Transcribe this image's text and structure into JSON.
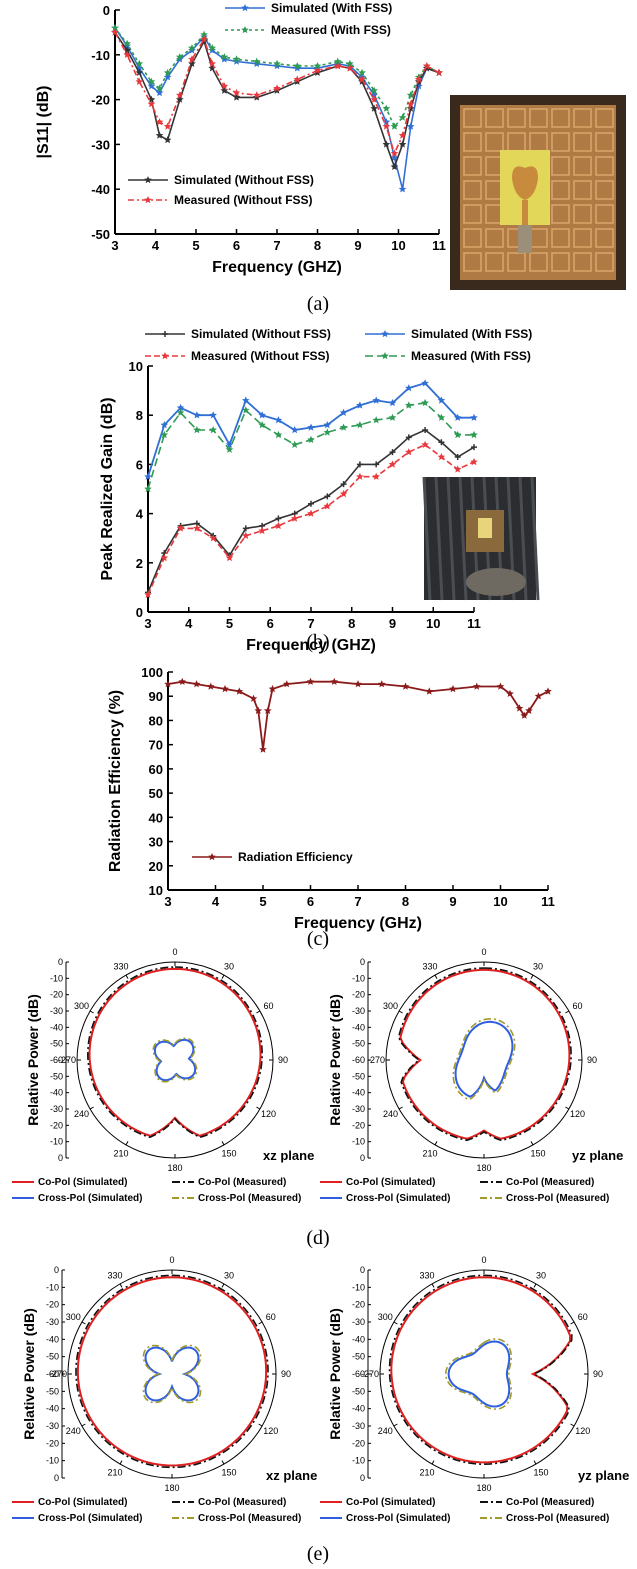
{
  "captions": {
    "a": "(a)",
    "b": "(b)",
    "c": "(c)",
    "d": "(d)",
    "e": "(e)"
  },
  "colors": {
    "black": "#333333",
    "red": "#e8383d",
    "blue": "#2f6fd6",
    "green": "#2e9a54",
    "maroon": "#8b1a1a",
    "polar_red": "#e02020",
    "polar_blue": "#2f5fe0",
    "polar_olive": "#a09a2a"
  },
  "photos": {
    "a": "photo-fss-antenna-prototype",
    "b": "photo-anechoic-chamber-measurement"
  },
  "chart_data": [
    {
      "id": "a",
      "type": "line",
      "xlabel": "Frequency (GHZ)",
      "ylabel": "|S11| (dB)",
      "xlim": [
        3,
        11
      ],
      "ylim": [
        -50,
        0
      ],
      "xticks": [
        "3",
        "4",
        "5",
        "6",
        "7",
        "8",
        "9",
        "10",
        "11"
      ],
      "yticks": [
        "0",
        "-10",
        "-20",
        "-30",
        "-40",
        "-50"
      ],
      "series": [
        {
          "name": "Simulated (With FSS)",
          "color": "blue",
          "x": [
            3,
            3.3,
            3.6,
            3.9,
            4.1,
            4.3,
            4.6,
            4.9,
            5.2,
            5.4,
            5.7,
            6.0,
            6.5,
            7.0,
            7.5,
            8.0,
            8.5,
            8.8,
            9.1,
            9.4,
            9.7,
            9.9,
            10.1,
            10.3,
            10.5,
            10.7,
            11.0
          ],
          "y": [
            -4,
            -8,
            -13,
            -17,
            -18.5,
            -15,
            -11,
            -9,
            -6,
            -9,
            -11,
            -11.5,
            -12,
            -12.5,
            -13,
            -13,
            -12,
            -12.5,
            -15,
            -19,
            -25,
            -33,
            -40,
            -26,
            -17,
            -13,
            -14
          ]
        },
        {
          "name": "Measured (With FSS)",
          "color": "green",
          "x": [
            3,
            3.3,
            3.6,
            3.9,
            4.1,
            4.3,
            4.6,
            4.9,
            5.2,
            5.4,
            5.7,
            6.0,
            6.5,
            7.0,
            7.5,
            8.0,
            8.5,
            8.8,
            9.1,
            9.4,
            9.7,
            9.9,
            10.1,
            10.3,
            10.5,
            10.7,
            11.0
          ],
          "y": [
            -4,
            -7.5,
            -12,
            -16,
            -17.5,
            -14,
            -10.5,
            -8.5,
            -5.5,
            -8.5,
            -10.5,
            -11,
            -11.5,
            -12,
            -12.5,
            -12.5,
            -11.5,
            -12,
            -14,
            -18,
            -22,
            -26,
            -24,
            -19,
            -15,
            -12.5,
            -14
          ]
        },
        {
          "name": "Simulated (Without FSS)",
          "color": "black",
          "x": [
            3,
            3.3,
            3.6,
            3.9,
            4.1,
            4.3,
            4.6,
            4.9,
            5.2,
            5.4,
            5.7,
            6.0,
            6.5,
            7.0,
            7.5,
            8.0,
            8.5,
            8.8,
            9.1,
            9.4,
            9.7,
            9.9,
            10.1,
            10.3,
            10.5,
            10.7,
            11.0
          ],
          "y": [
            -5,
            -9,
            -14,
            -20,
            -28,
            -29,
            -20,
            -12,
            -7,
            -13,
            -18,
            -19.5,
            -19.5,
            -18,
            -16,
            -14,
            -12.5,
            -13,
            -16,
            -22,
            -30,
            -35,
            -30,
            -22,
            -16,
            -13,
            -14
          ]
        },
        {
          "name": "Measured (Without FSS)",
          "color": "red",
          "x": [
            3,
            3.3,
            3.6,
            3.9,
            4.1,
            4.3,
            4.6,
            4.9,
            5.2,
            5.4,
            5.7,
            6.0,
            6.5,
            7.0,
            7.5,
            8.0,
            8.5,
            8.8,
            9.1,
            9.4,
            9.7,
            9.9,
            10.1,
            10.3,
            10.5,
            10.7,
            11.0
          ],
          "y": [
            -5,
            -10,
            -16,
            -21,
            -25,
            -26,
            -19,
            -11,
            -6.5,
            -12,
            -17,
            -18.5,
            -19,
            -17.5,
            -15.5,
            -13.5,
            -12.5,
            -13,
            -15.5,
            -20,
            -26,
            -32,
            -28,
            -21,
            -15.5,
            -12.5,
            -14
          ]
        }
      ]
    },
    {
      "id": "b",
      "type": "line",
      "xlabel": "Frequency (GHZ)",
      "ylabel": "Peak Realized Gain (dB)",
      "xlim": [
        3,
        11
      ],
      "ylim": [
        0,
        10
      ],
      "xticks": [
        "3",
        "4",
        "5",
        "6",
        "7",
        "8",
        "9",
        "10",
        "11"
      ],
      "yticks": [
        "0",
        "2",
        "4",
        "6",
        "8",
        "10"
      ],
      "series": [
        {
          "name": "Simulated (Without FSS)",
          "color": "black",
          "x": [
            3,
            3.4,
            3.8,
            4.2,
            4.6,
            5.0,
            5.4,
            5.8,
            6.2,
            6.6,
            7.0,
            7.4,
            7.8,
            8.2,
            8.6,
            9.0,
            9.4,
            9.8,
            10.2,
            10.6,
            11.0
          ],
          "y": [
            0.8,
            2.4,
            3.5,
            3.6,
            3.1,
            2.3,
            3.4,
            3.5,
            3.8,
            4.0,
            4.4,
            4.7,
            5.2,
            6.0,
            6.0,
            6.5,
            7.1,
            7.4,
            6.9,
            6.3,
            6.7
          ]
        },
        {
          "name": "Measured (Without FSS)",
          "color": "red",
          "x": [
            3,
            3.4,
            3.8,
            4.2,
            4.6,
            5.0,
            5.4,
            5.8,
            6.2,
            6.6,
            7.0,
            7.4,
            7.8,
            8.2,
            8.6,
            9.0,
            9.4,
            9.8,
            10.2,
            10.6,
            11.0
          ],
          "y": [
            0.7,
            2.2,
            3.4,
            3.4,
            3.0,
            2.2,
            3.1,
            3.3,
            3.5,
            3.8,
            4.0,
            4.3,
            4.8,
            5.5,
            5.5,
            6.0,
            6.5,
            6.8,
            6.3,
            5.8,
            6.1
          ]
        },
        {
          "name": "Simulated (With FSS)",
          "color": "blue",
          "x": [
            3,
            3.4,
            3.8,
            4.2,
            4.6,
            5.0,
            5.4,
            5.8,
            6.2,
            6.6,
            7.0,
            7.4,
            7.8,
            8.2,
            8.6,
            9.0,
            9.4,
            9.8,
            10.2,
            10.6,
            11.0
          ],
          "y": [
            5.5,
            7.6,
            8.3,
            8.0,
            8.0,
            6.8,
            8.6,
            8.0,
            7.8,
            7.4,
            7.5,
            7.6,
            8.1,
            8.4,
            8.6,
            8.5,
            9.1,
            9.3,
            8.6,
            7.9,
            7.9
          ]
        },
        {
          "name": "Measured (With FSS)",
          "color": "green",
          "x": [
            3,
            3.4,
            3.8,
            4.2,
            4.6,
            5.0,
            5.4,
            5.8,
            6.2,
            6.6,
            7.0,
            7.4,
            7.8,
            8.2,
            8.6,
            9.0,
            9.4,
            9.8,
            10.2,
            10.6,
            11.0
          ],
          "y": [
            5.0,
            7.2,
            8.1,
            7.4,
            7.4,
            6.6,
            8.2,
            7.6,
            7.2,
            6.8,
            7.0,
            7.3,
            7.5,
            7.6,
            7.8,
            7.9,
            8.4,
            8.5,
            7.9,
            7.2,
            7.2
          ]
        }
      ]
    },
    {
      "id": "c",
      "type": "line",
      "xlabel": "Frequency (GHz)",
      "ylabel": "Radiation Efficiency (%)",
      "xlim": [
        3,
        11
      ],
      "ylim": [
        10,
        100
      ],
      "xticks": [
        "3",
        "4",
        "5",
        "6",
        "7",
        "8",
        "9",
        "10",
        "11"
      ],
      "yticks": [
        "10",
        "20",
        "30",
        "40",
        "50",
        "60",
        "70",
        "80",
        "90",
        "100"
      ],
      "series": [
        {
          "name": "Radiation Efficiency",
          "color": "maroon",
          "x": [
            3,
            3.3,
            3.6,
            3.9,
            4.2,
            4.5,
            4.8,
            4.9,
            5.0,
            5.1,
            5.2,
            5.5,
            6.0,
            6.5,
            7.0,
            7.5,
            8.0,
            8.5,
            9.0,
            9.5,
            10.0,
            10.2,
            10.4,
            10.5,
            10.6,
            10.8,
            11.0
          ],
          "y": [
            95,
            96,
            95,
            94,
            93,
            92,
            89,
            84,
            68,
            84,
            93,
            95,
            96,
            96,
            95,
            95,
            94,
            92,
            93,
            94,
            94,
            91,
            85,
            82,
            84,
            90,
            92
          ]
        }
      ]
    },
    {
      "id": "d",
      "type": "polar",
      "ylabel": "Relative Power (dB)",
      "rticks": [
        "0",
        "-10",
        "-20",
        "-30",
        "-40",
        "-50",
        "-60",
        "-50",
        "-40",
        "-30",
        "-20",
        "-10",
        "0"
      ],
      "angle_labels": [
        "0",
        "30",
        "60",
        "90",
        "120",
        "150",
        "180",
        "210",
        "240",
        "-270",
        "300",
        "330"
      ],
      "planes": [
        "xz plane",
        "yz plane"
      ],
      "legend": [
        "Co-Pol (Simulated)",
        "Co-Pol (Measured)",
        "Cross-Pol (Simulated)",
        "Cross-Pol (Measured)"
      ]
    },
    {
      "id": "e",
      "type": "polar",
      "ylabel": "Relative Power (dB)",
      "rticks": [
        "0",
        "-10",
        "-20",
        "-30",
        "-40",
        "-50",
        "-60",
        "-50",
        "-40",
        "-30",
        "-20",
        "-10",
        "0"
      ],
      "angle_labels": [
        "0",
        "30",
        "60",
        "90",
        "120",
        "150",
        "180",
        "210",
        "240",
        "-270",
        "300",
        "330"
      ],
      "planes": [
        "xz plane",
        "yz plane"
      ],
      "legend": [
        "Co-Pol (Simulated)",
        "Co-Pol (Measured)",
        "Cross-Pol (Simulated)",
        "Cross-Pol (Measured)"
      ]
    }
  ]
}
